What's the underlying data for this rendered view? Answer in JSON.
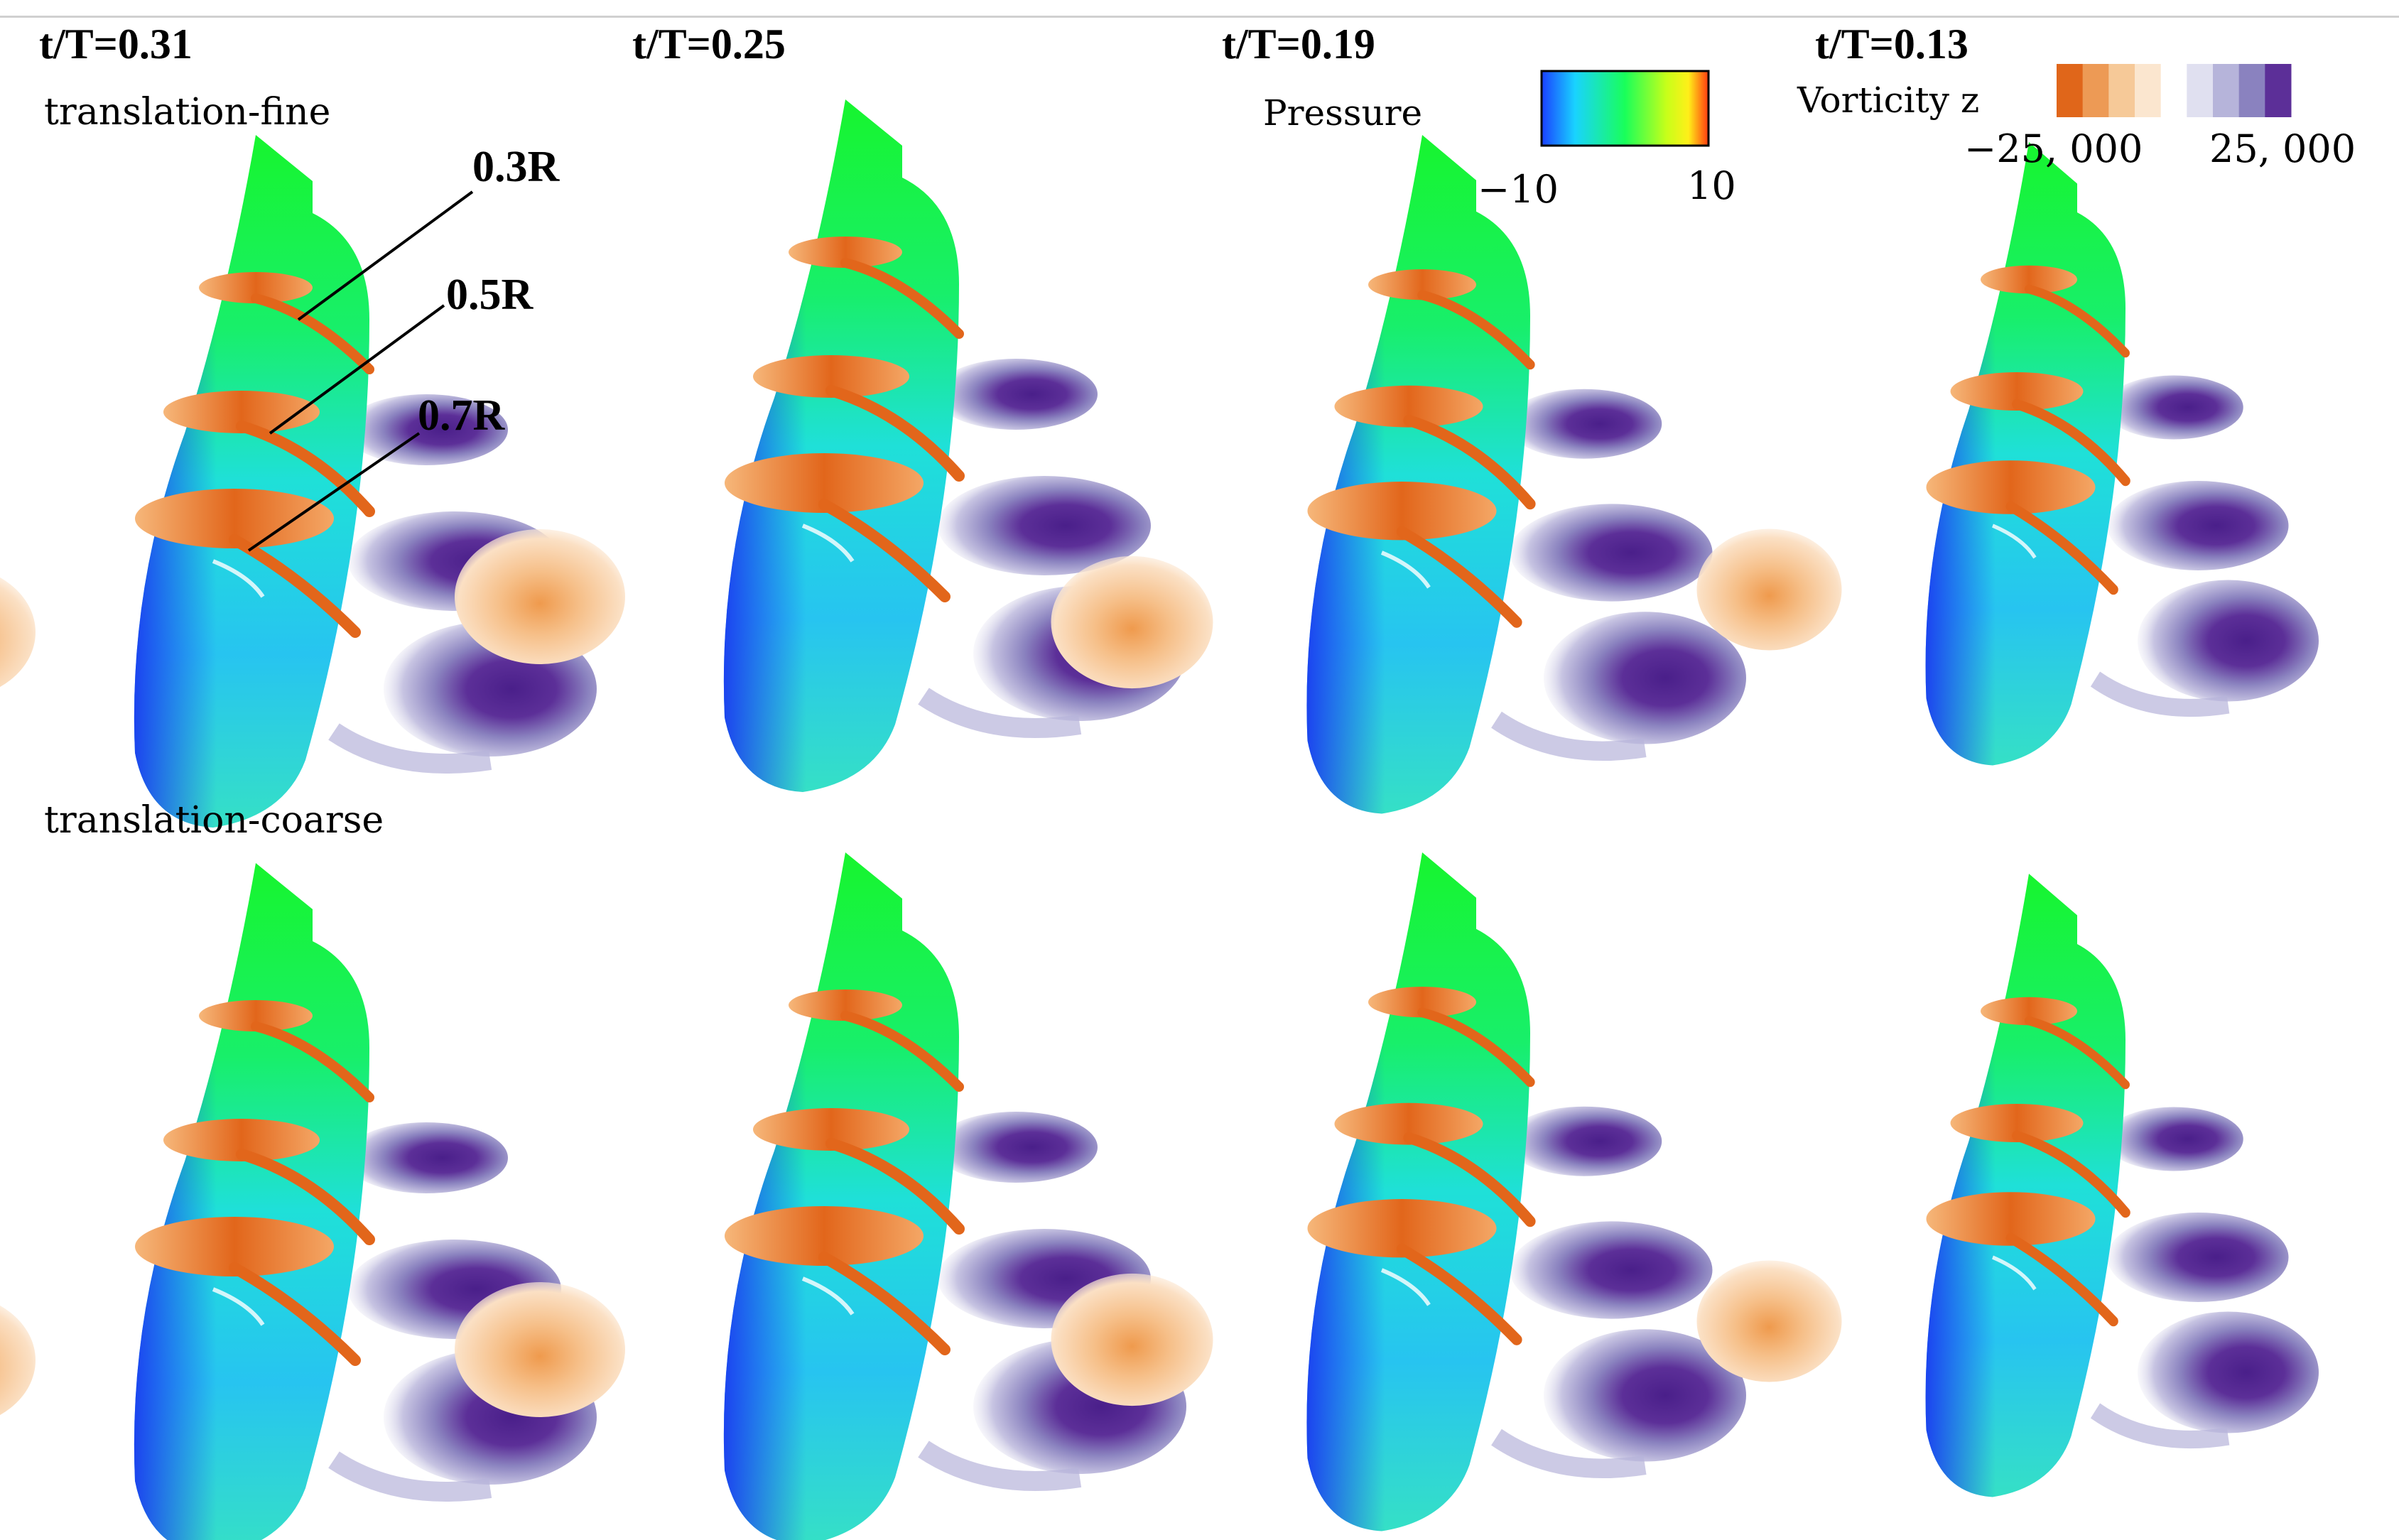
{
  "time_labels": [
    "t/T=0.31",
    "t/T=0.25",
    "t/T=0.19",
    "t/T=0.13"
  ],
  "row_labels": [
    "translation-fine",
    "translation-coarse"
  ],
  "section_labels": [
    "0.3R",
    "0.5R",
    "0.7R"
  ],
  "pressure_colorbar": {
    "title": "Pressure",
    "min_label": "−10",
    "max_label": "10",
    "colors": [
      "#1a3fff",
      "#19d3ff",
      "#19ff5a",
      "#c8ff19",
      "#ffef19",
      "#ff3a10"
    ]
  },
  "vorticity_colorbar": {
    "title": "Vorticity z",
    "min_label": "−25, 000",
    "max_label": "25, 000",
    "colors": [
      "#e0661a",
      "#ed9a55",
      "#f6c998",
      "#fbe6cf",
      "#ffffff",
      "#e0e0f0",
      "#b6b4da",
      "#8a82bf",
      "#5c2f98"
    ]
  },
  "colors": {
    "blade_tip": "#17f52e",
    "blade_mid": "#20d7e8",
    "blade_root": "#1b3cf0",
    "vortex_positive": "#5a2a96",
    "vortex_negative": "#e2661b"
  }
}
